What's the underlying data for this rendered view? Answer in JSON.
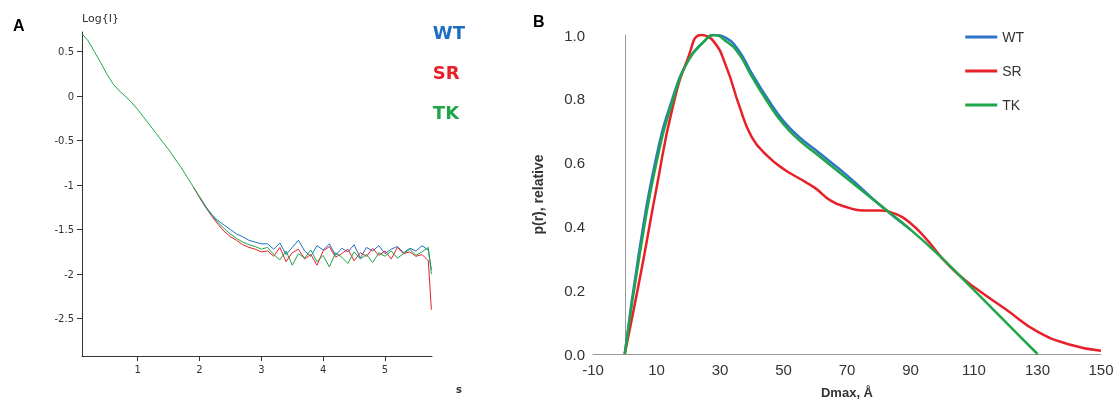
{
  "chart_data": [
    {
      "type": "line",
      "title": "A",
      "xlabel": "s",
      "ylabel": "Log{I}",
      "x": [
        0.1,
        0.2,
        0.3,
        0.4,
        0.5,
        0.6,
        0.7,
        0.8,
        0.9,
        1.0,
        1.1,
        1.2,
        1.3,
        1.4,
        1.5,
        1.6,
        1.7,
        1.8,
        1.9,
        2.0,
        2.1,
        2.2,
        2.3,
        2.4,
        2.5,
        2.6,
        2.7,
        2.8,
        2.9,
        3.0,
        3.1,
        3.2,
        3.3,
        3.4,
        3.5,
        3.6,
        3.7,
        3.8,
        3.9,
        4.0,
        4.1,
        4.2,
        4.3,
        4.4,
        4.5,
        4.6,
        4.7,
        4.8,
        4.9,
        5.0,
        5.1,
        5.2,
        5.3,
        5.4,
        5.5,
        5.6,
        5.7,
        5.75
      ],
      "series": [
        {
          "name": "WT",
          "color": "#1f6fc0",
          "values": [
            null,
            null,
            null,
            null,
            null,
            null,
            null,
            null,
            null,
            null,
            null,
            null,
            null,
            null,
            null,
            null,
            null,
            null,
            null,
            -1.13,
            -1.24,
            -1.33,
            -1.4,
            -1.45,
            -1.5,
            -1.55,
            -1.58,
            -1.62,
            -1.64,
            -1.66,
            -1.66,
            -1.72,
            -1.65,
            -1.78,
            -1.7,
            -1.62,
            -1.74,
            -1.8,
            -1.68,
            -1.73,
            -1.66,
            -1.79,
            -1.71,
            -1.75,
            -1.67,
            -1.82,
            -1.7,
            -1.74,
            -1.68,
            -1.77,
            -1.72,
            -1.69,
            -1.76,
            -1.71,
            -1.74,
            -1.68,
            -1.73,
            -1.95
          ]
        },
        {
          "name": "SR",
          "color": "#e8202a",
          "values": [
            null,
            null,
            null,
            null,
            null,
            null,
            null,
            null,
            null,
            null,
            null,
            null,
            null,
            null,
            null,
            null,
            null,
            null,
            -1.02,
            -1.14,
            -1.25,
            -1.35,
            -1.44,
            -1.52,
            -1.58,
            -1.62,
            -1.67,
            -1.7,
            -1.72,
            -1.75,
            -1.74,
            -1.8,
            -1.7,
            -1.86,
            -1.76,
            -1.72,
            -1.83,
            -1.78,
            -1.9,
            -1.74,
            -1.69,
            -1.81,
            -1.77,
            -1.72,
            -1.85,
            -1.76,
            -1.8,
            -1.71,
            -1.79,
            -1.74,
            -1.83,
            -1.7,
            -1.77,
            -1.75,
            -1.8,
            -1.78,
            -1.85,
            -2.4
          ]
        },
        {
          "name": "TK",
          "color": "#1fa64a",
          "values": [
            0.7,
            0.62,
            0.5,
            0.38,
            0.25,
            0.14,
            0.06,
            0.0,
            -0.07,
            -0.15,
            -0.24,
            -0.33,
            -0.42,
            -0.51,
            -0.6,
            -0.7,
            -0.8,
            -0.91,
            -1.02,
            -1.13,
            -1.25,
            -1.34,
            -1.42,
            -1.49,
            -1.55,
            -1.6,
            -1.64,
            -1.67,
            -1.69,
            -1.72,
            -1.7,
            -1.78,
            -1.84,
            -1.74,
            -1.9,
            -1.77,
            -1.82,
            -1.73,
            -1.86,
            -1.79,
            -1.92,
            -1.76,
            -1.81,
            -1.88,
            -1.75,
            -1.83,
            -1.78,
            -1.87,
            -1.76,
            -1.8,
            -1.74,
            -1.82,
            -1.77,
            -1.72,
            -1.79,
            -1.75,
            -1.7,
            -2.0
          ]
        }
      ],
      "xlim": [
        0.1,
        5.76
      ],
      "ylim": [
        -2.92,
        0.72
      ],
      "xticks": [
        1,
        2,
        3,
        4,
        5
      ],
      "yticks": [
        0.5,
        0,
        -0.5,
        -1,
        -1.5,
        -2,
        -2.5
      ],
      "grid": false,
      "legend": "top right",
      "marker": "none",
      "line_style": "solid"
    },
    {
      "type": "line",
      "title": "B",
      "xlabel": "Dmax, Å",
      "ylabel": "p(r), relative",
      "series": [
        {
          "name": "WT",
          "color": "#2e75c8",
          "x": [
            0,
            5,
            10,
            15,
            20,
            25,
            28,
            32,
            36,
            40,
            45,
            50,
            55,
            60,
            70,
            80,
            90
          ],
          "values": [
            0,
            0.35,
            0.62,
            0.8,
            0.92,
            0.98,
            1.0,
            0.99,
            0.95,
            0.88,
            0.8,
            0.73,
            0.68,
            0.64,
            0.56,
            0.47,
            0.39
          ]
        },
        {
          "name": "SR",
          "color": "#e8202a",
          "x": [
            0,
            5,
            10,
            15,
            20,
            24,
            28,
            32,
            36,
            40,
            45,
            50,
            55,
            60,
            65,
            70,
            75,
            80,
            85,
            90,
            95,
            100,
            105,
            110,
            120,
            130,
            140,
            150
          ],
          "values": [
            0,
            0.25,
            0.52,
            0.77,
            0.93,
            1.0,
            0.98,
            0.9,
            0.78,
            0.68,
            0.62,
            0.58,
            0.55,
            0.52,
            0.48,
            0.46,
            0.45,
            0.45,
            0.44,
            0.41,
            0.36,
            0.3,
            0.25,
            0.21,
            0.14,
            0.07,
            0.03,
            0.01
          ]
        },
        {
          "name": "TK",
          "color": "#1fa64a",
          "x": [
            0,
            5,
            10,
            15,
            20,
            25,
            28,
            32,
            36,
            40,
            45,
            50,
            55,
            60,
            70,
            80,
            90,
            100,
            110,
            120,
            130
          ],
          "values": [
            0,
            0.33,
            0.6,
            0.79,
            0.92,
            0.98,
            1.0,
            0.98,
            0.94,
            0.87,
            0.79,
            0.72,
            0.67,
            0.63,
            0.55,
            0.47,
            0.39,
            0.3,
            0.2,
            0.1,
            0
          ]
        }
      ],
      "xlim": [
        -10,
        150
      ],
      "ylim": [
        0,
        1
      ],
      "xticks": [
        -10,
        10,
        30,
        50,
        70,
        90,
        110,
        130,
        150
      ],
      "yticks": [
        {
          "value": 0,
          "label": "0.0"
        },
        {
          "value": 0.2,
          "label": "0.2"
        },
        {
          "value": 0.4,
          "label": "0.4"
        },
        {
          "value": 0.6,
          "label": "0.6"
        },
        {
          "value": 0.8,
          "label": "0.8"
        },
        {
          "value": 1,
          "label": "1.0"
        }
      ],
      "grid": false,
      "legend": "top right",
      "marker": "none",
      "line_style": "solid"
    }
  ]
}
